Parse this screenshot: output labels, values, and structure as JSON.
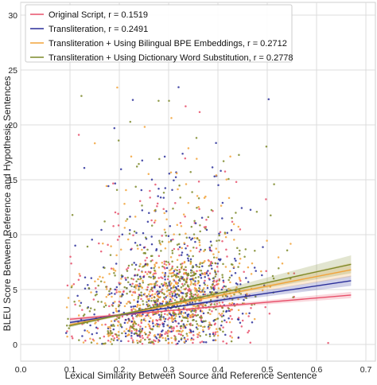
{
  "chart_data": {
    "type": "scatter",
    "xlabel": "Lexical Similarity Between Source and Reference Sentence",
    "ylabel": "BLEU Score Between Reference and Hypothesis Sentences",
    "xlim": [
      0.0,
      0.7
    ],
    "ylim": [
      -2,
      30
    ],
    "x_ticks": [
      "0.0",
      "0.1",
      "0.2",
      "0.3",
      "0.4",
      "0.5",
      "0.6",
      "0.7"
    ],
    "y_ticks": [
      "0",
      "5",
      "10",
      "15",
      "20",
      "25",
      "30"
    ],
    "grid": true,
    "legend_position": "top-left",
    "series": [
      {
        "name": "Original Script, ",
        "r_text": "r = 0.1519",
        "color": "#e8506b",
        "trend": {
          "x": [
            0.1,
            0.67
          ],
          "y": [
            2.3,
            4.5
          ]
        }
      },
      {
        "name": "Transliteration, ",
        "r_text": "r = 0.2491",
        "color": "#2a2f9a",
        "trend": {
          "x": [
            0.1,
            0.67
          ],
          "y": [
            2.0,
            5.8
          ]
        }
      },
      {
        "name": "Transliteration + Using Bilingual BPE Embeddings, ",
        "r_text": "r = 0.2712",
        "color": "#f2a33a",
        "trend": {
          "x": [
            0.1,
            0.67
          ],
          "y": [
            1.8,
            6.8
          ]
        }
      },
      {
        "name": "Transliteration + Using Dictionary Word Substitution, ",
        "r_text": "r = 0.2778",
        "color": "#7d8a2a",
        "trend": {
          "x": [
            0.1,
            0.67
          ],
          "y": [
            1.7,
            7.3
          ]
        }
      }
    ]
  }
}
